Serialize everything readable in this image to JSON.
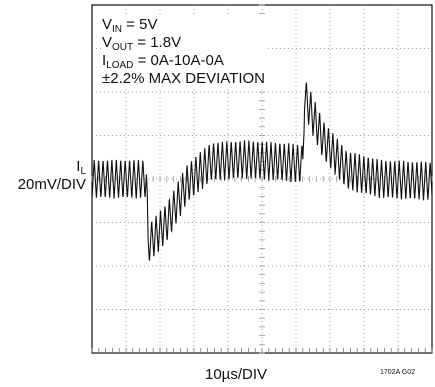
{
  "conditions": {
    "vin": {
      "main": "V",
      "sub": "IN",
      "rest": " = 5V"
    },
    "vout": {
      "main": "V",
      "sub": "OUT",
      "rest": " = 1.8V"
    },
    "iload": {
      "main": "I",
      "sub": "LOAD",
      "rest": " = 0A-10A-0A"
    },
    "deviation": "±2.2% MAX DEVIATION"
  },
  "channel_label": {
    "main": "I",
    "sub": "L",
    "scale": "20mV/DIV"
  },
  "xlabel": "10µs/DIV",
  "figure_id": "1702A G02",
  "chart_data": {
    "type": "line",
    "title": "",
    "xlabel": "10µs/DIV",
    "ylabel": "I_L 20mV/DIV",
    "grid": true,
    "x_divisions": 10,
    "y_divisions": 8,
    "xlim": [
      0,
      10
    ],
    "ylim": [
      -4,
      4
    ],
    "trace_color": "#111111",
    "grid_color": "#888888",
    "series": [
      {
        "name": "",
        "ripple_amplitude_div": 0.45,
        "ripple_period_div": 0.13,
        "envelope_points": [
          {
            "x": 0.0,
            "y": 0.0
          },
          {
            "x": 1.6,
            "y": 0.0
          },
          {
            "x": 1.65,
            "y": -1.5
          },
          {
            "x": 2.2,
            "y": -1.0
          },
          {
            "x": 2.8,
            "y": -0.1
          },
          {
            "x": 3.5,
            "y": 0.4
          },
          {
            "x": 4.5,
            "y": 0.45
          },
          {
            "x": 5.5,
            "y": 0.4
          },
          {
            "x": 6.2,
            "y": 0.35
          },
          {
            "x": 6.25,
            "y": 1.9
          },
          {
            "x": 6.8,
            "y": 0.9
          },
          {
            "x": 7.5,
            "y": 0.2
          },
          {
            "x": 8.5,
            "y": 0.0
          },
          {
            "x": 10.0,
            "y": -0.05
          }
        ]
      }
    ]
  }
}
